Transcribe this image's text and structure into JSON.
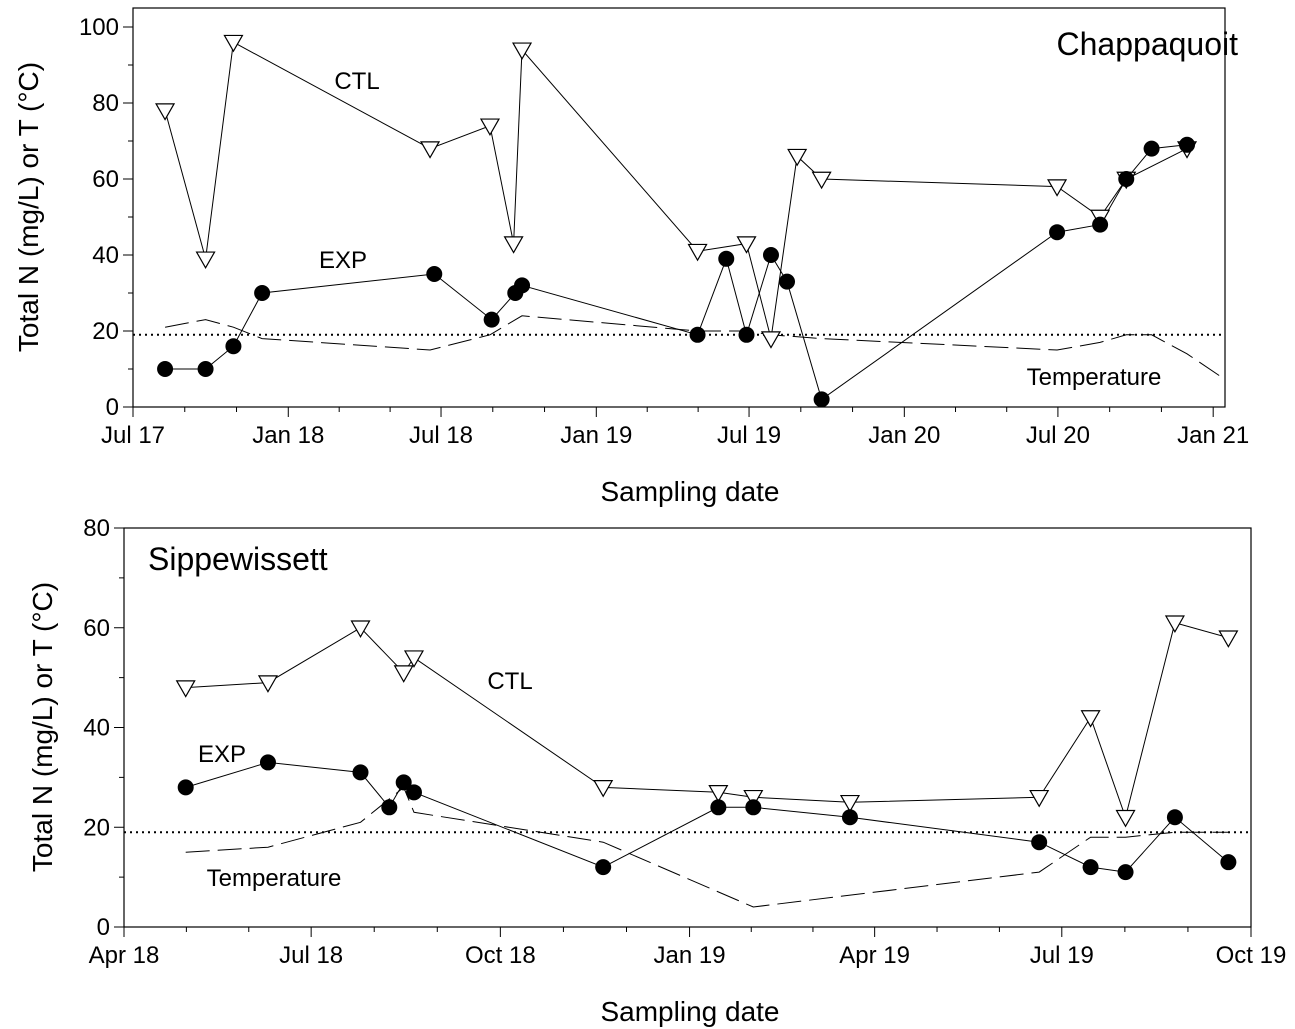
{
  "chart_data": [
    {
      "type": "line",
      "title": "Chappaquoit",
      "xlabel": "Sampling date",
      "ylabel": "Total N (mg/L) or T (°C)",
      "xlim": [
        "2017-07-01",
        "2021-01-15"
      ],
      "ylim": [
        0,
        105
      ],
      "xticks": [
        "2017-07-01",
        "2018-01-01",
        "2018-07-01",
        "2019-01-01",
        "2019-07-01",
        "2020-01-01",
        "2020-07-01",
        "2021-01-01"
      ],
      "xtick_labels": [
        "Jul 17",
        "Jan 18",
        "Jul 18",
        "Jan 19",
        "Jul 19",
        "Jan 20",
        "Jul 20",
        "Jan 21"
      ],
      "yticks": [
        0,
        20,
        40,
        60,
        80,
        100
      ],
      "ytick_labels": [
        "0",
        "20",
        "40",
        "60",
        "80",
        "100"
      ],
      "reference_line": 19,
      "series": [
        {
          "name": "CTL",
          "marker": "open-triangle-down",
          "x": [
            "2017-08-08",
            "2017-09-25",
            "2017-10-28",
            "2018-06-18",
            "2018-08-28",
            "2018-09-25",
            "2018-10-05",
            "2019-05-01",
            "2019-06-28",
            "2019-07-27",
            "2019-08-27",
            "2019-09-25",
            "2020-06-30",
            "2020-08-20",
            "2020-09-20",
            "2020-12-01"
          ],
          "values": [
            78,
            39,
            96,
            68,
            74,
            43,
            94,
            41,
            43,
            18,
            66,
            60,
            58,
            50,
            60,
            68
          ]
        },
        {
          "name": "EXP",
          "marker": "filled-circle",
          "x": [
            "2017-08-08",
            "2017-09-25",
            "2017-10-28",
            "2017-12-01",
            "2018-06-23",
            "2018-08-30",
            "2018-09-27",
            "2018-10-05",
            "2019-05-01",
            "2019-06-04",
            "2019-06-28",
            "2019-07-27",
            "2019-08-15",
            "2019-09-25",
            "2020-06-30",
            "2020-08-20",
            "2020-09-20",
            "2020-10-20",
            "2020-12-01"
          ],
          "values": [
            10,
            10,
            16,
            30,
            35,
            23,
            30,
            32,
            19,
            39,
            19,
            40,
            33,
            2,
            46,
            48,
            60,
            68,
            69
          ]
        },
        {
          "name": "Temperature",
          "line_style": "dashed",
          "x": [
            "2017-08-08",
            "2017-09-01",
            "2017-09-25",
            "2017-10-28",
            "2017-12-01",
            "2018-06-18",
            "2018-08-28",
            "2018-10-05",
            "2019-05-01",
            "2019-06-28",
            "2019-07-27",
            "2019-09-25",
            "2020-06-30",
            "2020-08-20",
            "2020-09-20",
            "2020-10-20",
            "2020-12-01",
            "2021-01-10"
          ],
          "values": [
            21,
            22,
            23,
            21,
            18,
            15,
            19,
            24,
            20,
            20,
            19,
            18,
            15,
            17,
            19,
            19,
            14,
            8
          ]
        }
      ],
      "annotations": [
        "Chappaquoit",
        "CTL",
        "EXP",
        "Temperature"
      ]
    },
    {
      "type": "line",
      "title": "Sippewissett",
      "xlabel": "Sampling date",
      "ylabel": "Total N (mg/L) or T (°C)",
      "xlim": [
        "2018-04-01",
        "2019-10-01"
      ],
      "ylim": [
        0,
        80
      ],
      "xticks": [
        "2018-04-01",
        "2018-07-01",
        "2018-10-01",
        "2019-01-01",
        "2019-04-01",
        "2019-07-01",
        "2019-10-01"
      ],
      "xtick_labels": [
        "Apr 18",
        "Jul 18",
        "Oct 18",
        "Jan 19",
        "Apr 19",
        "Jul 19",
        "Oct 19"
      ],
      "yticks": [
        0,
        20,
        40,
        60,
        80
      ],
      "ytick_labels": [
        "0",
        "20",
        "40",
        "60",
        "80"
      ],
      "reference_line": 19,
      "series": [
        {
          "name": "CTL",
          "marker": "open-triangle-down",
          "x": [
            "2018-05-01",
            "2018-06-10",
            "2018-07-25",
            "2018-08-15",
            "2018-08-20",
            "2018-11-20",
            "2019-01-15",
            "2019-02-01",
            "2019-03-20",
            "2019-06-20",
            "2019-07-15",
            "2019-08-01",
            "2019-08-25",
            "2019-09-20"
          ],
          "values": [
            48,
            49,
            60,
            51,
            54,
            28,
            27,
            26,
            25,
            26,
            42,
            22,
            61,
            58
          ]
        },
        {
          "name": "EXP",
          "marker": "filled-circle",
          "x": [
            "2018-05-01",
            "2018-06-10",
            "2018-07-25",
            "2018-08-08",
            "2018-08-15",
            "2018-08-20",
            "2018-11-20",
            "2019-01-15",
            "2019-02-01",
            "2019-03-20",
            "2019-06-20",
            "2019-07-15",
            "2019-08-01",
            "2019-08-25",
            "2019-09-20"
          ],
          "values": [
            28,
            33,
            31,
            24,
            29,
            27,
            12,
            24,
            24,
            22,
            17,
            12,
            11,
            22,
            13
          ]
        },
        {
          "name": "Temperature",
          "line_style": "dashed",
          "x": [
            "2018-05-01",
            "2018-06-10",
            "2018-07-25",
            "2018-08-15",
            "2018-08-20",
            "2018-11-20",
            "2019-02-01",
            "2019-06-20",
            "2019-07-15",
            "2019-08-01",
            "2019-08-25",
            "2019-09-20"
          ],
          "values": [
            15,
            16,
            21,
            28,
            23,
            17,
            4,
            11,
            18,
            18,
            19,
            19
          ]
        }
      ],
      "annotations": [
        "Sippewissett",
        "CTL",
        "EXP",
        "Temperature"
      ]
    }
  ]
}
